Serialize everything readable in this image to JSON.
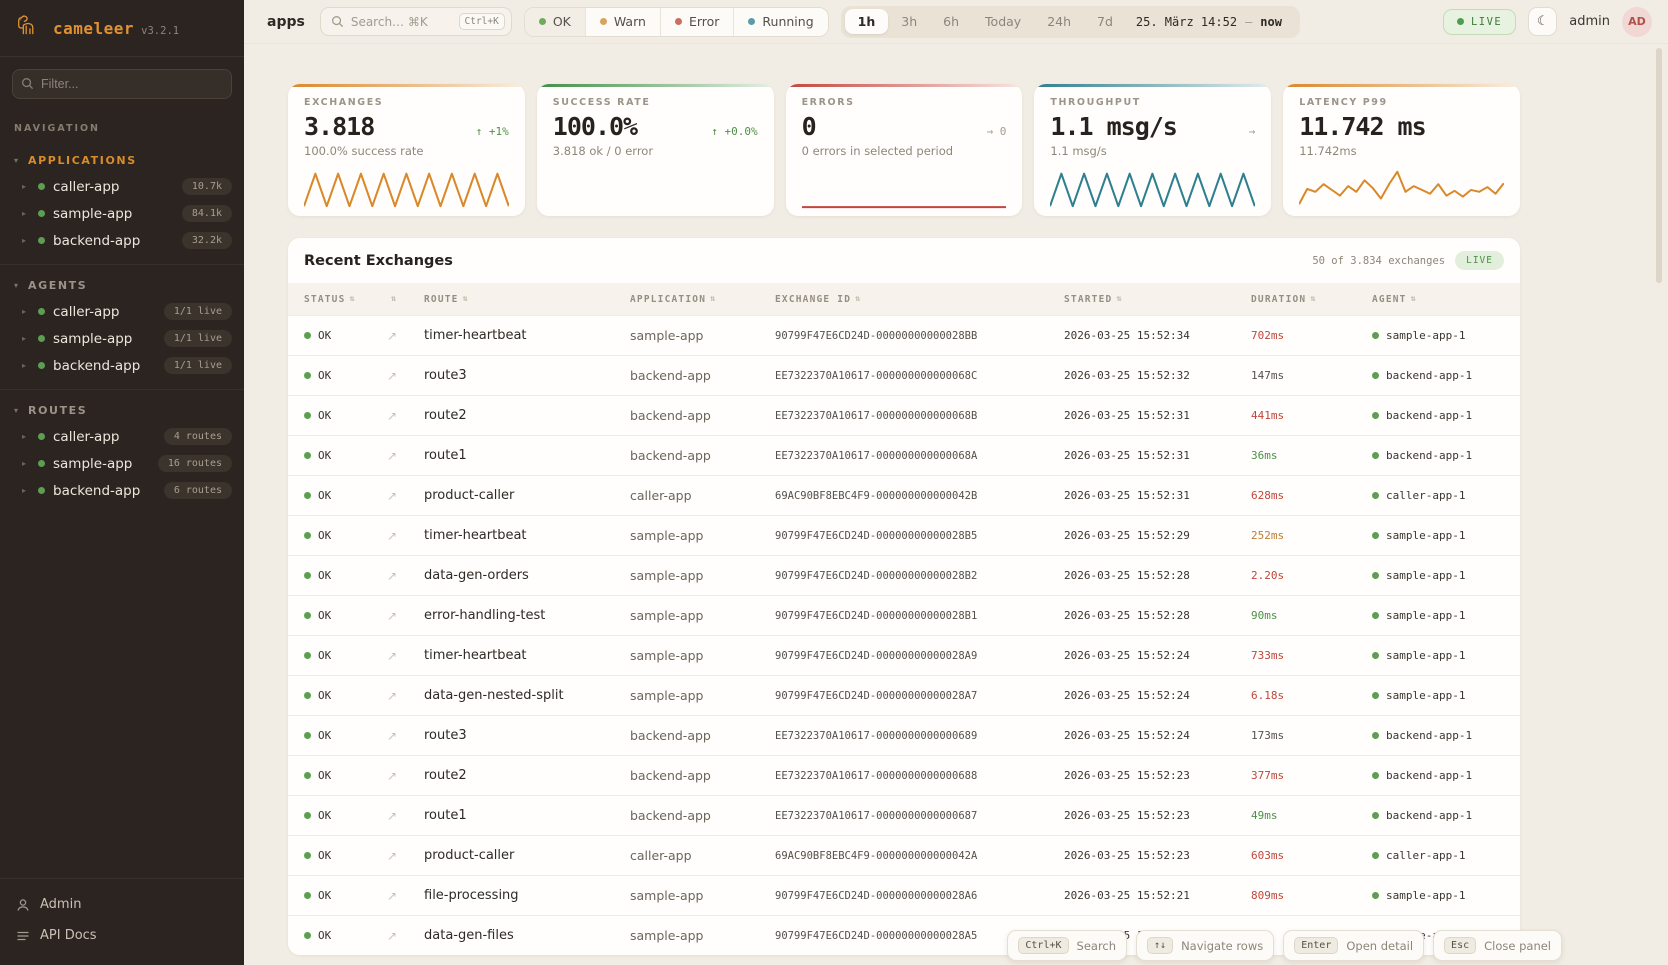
{
  "sidebar": {
    "logo": {
      "name": "cameleer",
      "version": "v3.2.1"
    },
    "filter_placeholder": "Filter...",
    "nav_label": "NAVIGATION",
    "sections": [
      {
        "label": "APPLICATIONS",
        "accent": true,
        "items": [
          {
            "name": "caller-app",
            "badge": "10.7k"
          },
          {
            "name": "sample-app",
            "badge": "84.1k"
          },
          {
            "name": "backend-app",
            "badge": "32.2k"
          }
        ]
      },
      {
        "label": "AGENTS",
        "accent": false,
        "items": [
          {
            "name": "caller-app",
            "badge": "1/1 live"
          },
          {
            "name": "sample-app",
            "badge": "1/1 live"
          },
          {
            "name": "backend-app",
            "badge": "1/1 live"
          }
        ]
      },
      {
        "label": "ROUTES",
        "accent": false,
        "items": [
          {
            "name": "caller-app",
            "badge": "4 routes"
          },
          {
            "name": "sample-app",
            "badge": "16 routes"
          },
          {
            "name": "backend-app",
            "badge": "6 routes"
          }
        ]
      }
    ],
    "footer": [
      {
        "label": "Admin"
      },
      {
        "label": "API Docs"
      }
    ]
  },
  "topbar": {
    "context": "apps",
    "search": {
      "placeholder": "Search… ⌘K",
      "kbd": "Ctrl+K"
    },
    "status_filters": [
      {
        "label": "OK",
        "color": "#6faa5e",
        "active": true
      },
      {
        "label": "Warn",
        "color": "#d9a35f",
        "active": false
      },
      {
        "label": "Error",
        "color": "#cc6e5e",
        "active": false
      },
      {
        "label": "Running",
        "color": "#5f9aa8",
        "active": false
      }
    ],
    "time_ranges": [
      "1h",
      "3h",
      "6h",
      "Today",
      "24h",
      "7d"
    ],
    "active_range": "1h",
    "date_from": "25. März 14:52",
    "date_sep": "—",
    "date_to": "now",
    "live_label": "LIVE",
    "theme_icon": "☾",
    "user": "admin",
    "avatar": "AD"
  },
  "cards": [
    {
      "label": "EXCHANGES",
      "value": "3.818",
      "delta": "↑ +1%",
      "delta_tone": "up",
      "sub": "100.0% success rate",
      "accent": "#d9882a",
      "spark": {
        "type": "zigzag",
        "color": "#d9882a"
      }
    },
    {
      "label": "SUCCESS RATE",
      "value": "100.0%",
      "delta": "↑ +0.0%",
      "delta_tone": "up",
      "sub": "3.818 ok / 0 error",
      "accent": "#3f8f46",
      "spark": {
        "type": "none"
      }
    },
    {
      "label": "ERRORS",
      "value": "0",
      "delta": "→ 0",
      "delta_tone": "flat",
      "sub": "0 errors in selected period",
      "accent": "#c4453c",
      "spark": {
        "type": "flat",
        "color": "#c4453c"
      }
    },
    {
      "label": "THROUGHPUT",
      "value": "1.1 msg/s",
      "delta": "→",
      "delta_tone": "flat",
      "sub": "1.1 msg/s",
      "accent": "#2e7f8f",
      "spark": {
        "type": "zigzag",
        "color": "#2e7f8f"
      }
    },
    {
      "label": "LATENCY P99",
      "value": "11.742 ms",
      "delta": "",
      "delta_tone": "flat",
      "sub": "11.742ms",
      "accent": "#d9882a",
      "spark": {
        "type": "line",
        "color": "#d9882a",
        "points": [
          40,
          24,
          27,
          19,
          25,
          31,
          21,
          27,
          15,
          23,
          34,
          19,
          6,
          27,
          21,
          25,
          29,
          19,
          31,
          26,
          32,
          25,
          27,
          22,
          29,
          18
        ]
      }
    }
  ],
  "table": {
    "title": "Recent Exchanges",
    "meta": "50 of 3.834 exchanges",
    "live_label": "LIVE",
    "columns": [
      "STATUS",
      "",
      "ROUTE",
      "APPLICATION",
      "EXCHANGE ID",
      "STARTED",
      "DURATION",
      "AGENT"
    ],
    "rows": [
      {
        "status": "OK",
        "route": "timer-heartbeat",
        "app": "sample-app",
        "id": "90799F47E6CD24D-00000000000028BB",
        "started": "2026-03-25 15:52:34",
        "duration": "702ms",
        "dur_tone": "red",
        "agent": "sample-app-1"
      },
      {
        "status": "OK",
        "route": "route3",
        "app": "backend-app",
        "id": "EE7322370A10617-000000000000068C",
        "started": "2026-03-25 15:52:32",
        "duration": "147ms",
        "dur_tone": "neutral",
        "agent": "backend-app-1"
      },
      {
        "status": "OK",
        "route": "route2",
        "app": "backend-app",
        "id": "EE7322370A10617-000000000000068B",
        "started": "2026-03-25 15:52:31",
        "duration": "441ms",
        "dur_tone": "red",
        "agent": "backend-app-1"
      },
      {
        "status": "OK",
        "route": "route1",
        "app": "backend-app",
        "id": "EE7322370A10617-000000000000068A",
        "started": "2026-03-25 15:52:31",
        "duration": "36ms",
        "dur_tone": "green",
        "agent": "backend-app-1"
      },
      {
        "status": "OK",
        "route": "product-caller",
        "app": "caller-app",
        "id": "69AC90BF8EBC4F9-000000000000042B",
        "started": "2026-03-25 15:52:31",
        "duration": "628ms",
        "dur_tone": "red",
        "agent": "caller-app-1"
      },
      {
        "status": "OK",
        "route": "timer-heartbeat",
        "app": "sample-app",
        "id": "90799F47E6CD24D-00000000000028B5",
        "started": "2026-03-25 15:52:29",
        "duration": "252ms",
        "dur_tone": "amber",
        "agent": "sample-app-1"
      },
      {
        "status": "OK",
        "route": "data-gen-orders",
        "app": "sample-app",
        "id": "90799F47E6CD24D-00000000000028B2",
        "started": "2026-03-25 15:52:28",
        "duration": "2.20s",
        "dur_tone": "red",
        "agent": "sample-app-1"
      },
      {
        "status": "OK",
        "route": "error-handling-test",
        "app": "sample-app",
        "id": "90799F47E6CD24D-00000000000028B1",
        "started": "2026-03-25 15:52:28",
        "duration": "90ms",
        "dur_tone": "green",
        "agent": "sample-app-1"
      },
      {
        "status": "OK",
        "route": "timer-heartbeat",
        "app": "sample-app",
        "id": "90799F47E6CD24D-00000000000028A9",
        "started": "2026-03-25 15:52:24",
        "duration": "733ms",
        "dur_tone": "red",
        "agent": "sample-app-1"
      },
      {
        "status": "OK",
        "route": "data-gen-nested-split",
        "app": "sample-app",
        "id": "90799F47E6CD24D-00000000000028A7",
        "started": "2026-03-25 15:52:24",
        "duration": "6.18s",
        "dur_tone": "red",
        "agent": "sample-app-1"
      },
      {
        "status": "OK",
        "route": "route3",
        "app": "backend-app",
        "id": "EE7322370A10617-0000000000000689",
        "started": "2026-03-25 15:52:24",
        "duration": "173ms",
        "dur_tone": "neutral",
        "agent": "backend-app-1"
      },
      {
        "status": "OK",
        "route": "route2",
        "app": "backend-app",
        "id": "EE7322370A10617-0000000000000688",
        "started": "2026-03-25 15:52:23",
        "duration": "377ms",
        "dur_tone": "red",
        "agent": "backend-app-1"
      },
      {
        "status": "OK",
        "route": "route1",
        "app": "backend-app",
        "id": "EE7322370A10617-0000000000000687",
        "started": "2026-03-25 15:52:23",
        "duration": "49ms",
        "dur_tone": "green",
        "agent": "backend-app-1"
      },
      {
        "status": "OK",
        "route": "product-caller",
        "app": "caller-app",
        "id": "69AC90BF8EBC4F9-000000000000042A",
        "started": "2026-03-25 15:52:23",
        "duration": "603ms",
        "dur_tone": "red",
        "agent": "caller-app-1"
      },
      {
        "status": "OK",
        "route": "file-processing",
        "app": "sample-app",
        "id": "90799F47E6CD24D-00000000000028A6",
        "started": "2026-03-25 15:52:21",
        "duration": "809ms",
        "dur_tone": "red",
        "agent": "sample-app-1"
      },
      {
        "status": "OK",
        "route": "data-gen-files",
        "app": "sample-app",
        "id": "90799F47E6CD24D-00000000000028A5",
        "started": "2026-03-25 1",
        "duration": "",
        "dur_tone": "neutral",
        "agent": "sample-app-1"
      }
    ]
  },
  "shortcuts": [
    {
      "kbd": "Ctrl+K",
      "label": "Search"
    },
    {
      "kbd": "↑↓",
      "label": "Navigate rows"
    },
    {
      "kbd": "Enter",
      "label": "Open detail"
    },
    {
      "kbd": "Esc",
      "label": "Close panel"
    }
  ]
}
